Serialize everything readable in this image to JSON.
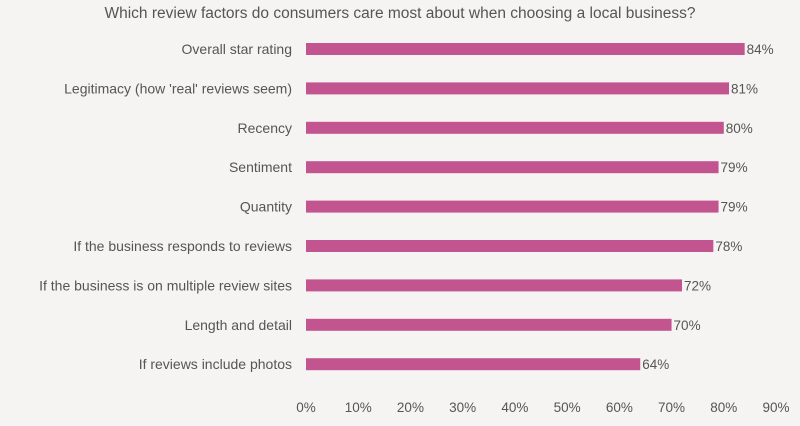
{
  "chart_data": {
    "type": "bar",
    "orientation": "horizontal",
    "title": "Which review factors do consumers care most about when choosing a local business?",
    "xlabel": "",
    "ylabel": "",
    "categories": [
      "Overall star rating",
      "Legitimacy (how 'real' reviews seem)",
      "Recency",
      "Sentiment",
      "Quantity",
      "If the business responds to reviews",
      "If the business is on multiple review sites",
      "Length and detail",
      "If reviews include photos"
    ],
    "values": [
      84,
      81,
      80,
      79,
      79,
      78,
      72,
      70,
      64
    ],
    "value_labels": [
      "84%",
      "81%",
      "80%",
      "79%",
      "79%",
      "78%",
      "72%",
      "70%",
      "64%"
    ],
    "xlim": [
      0,
      90
    ],
    "xticks": [
      0,
      10,
      20,
      30,
      40,
      50,
      60,
      70,
      80,
      90
    ],
    "xtick_labels": [
      "0%",
      "10%",
      "20%",
      "30%",
      "40%",
      "50%",
      "60%",
      "70%",
      "80%",
      "90%"
    ],
    "bar_color": "#c2548f",
    "grid": false,
    "legend": "none"
  }
}
